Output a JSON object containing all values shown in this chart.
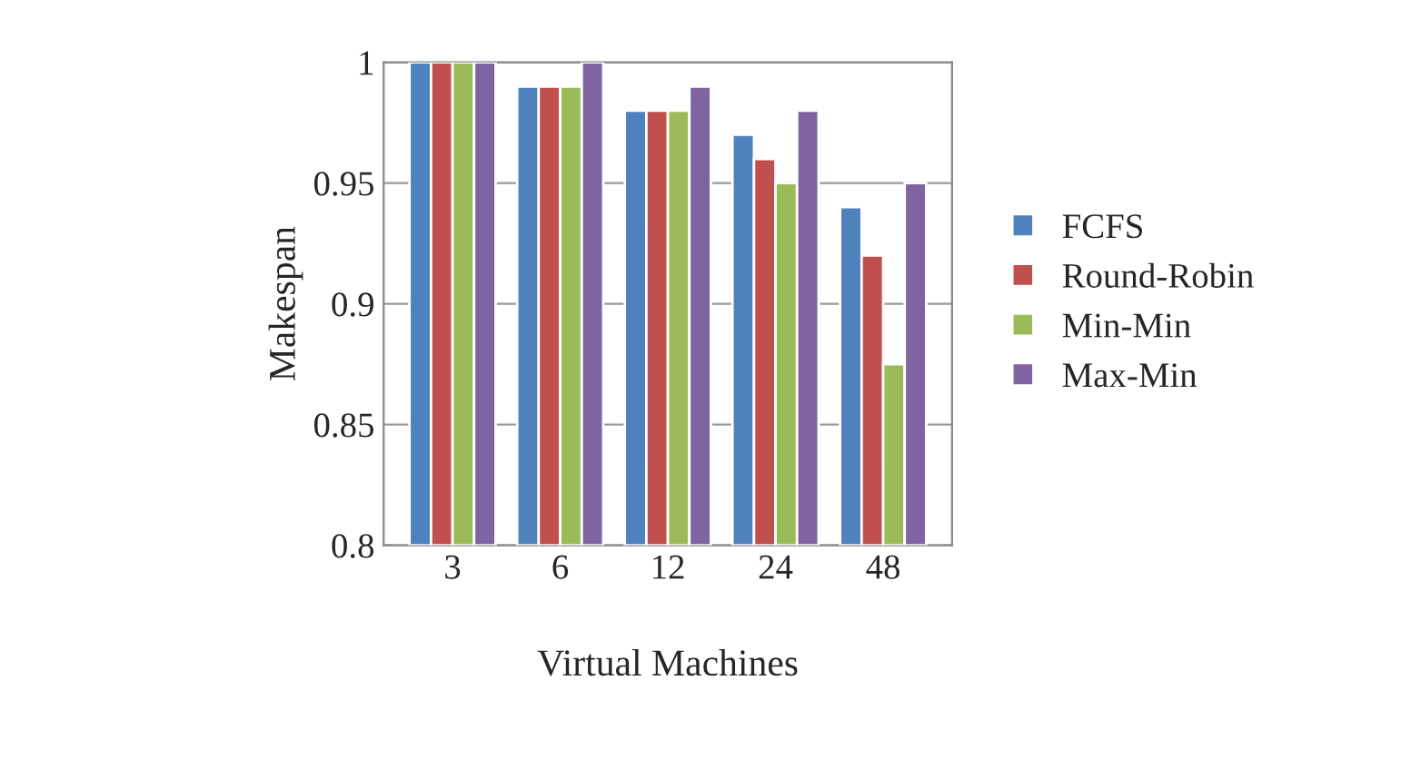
{
  "chart_data": {
    "type": "bar",
    "xlabel": "Virtual Machines",
    "ylabel": "Makespan",
    "categories": [
      "3",
      "6",
      "12",
      "24",
      "48"
    ],
    "series": [
      {
        "name": "FCFS",
        "color": "#4f81bd",
        "values": [
          1.0,
          0.99,
          0.98,
          0.97,
          0.94
        ]
      },
      {
        "name": "Round-Robin",
        "color": "#c0504d",
        "values": [
          1.0,
          0.99,
          0.98,
          0.96,
          0.92
        ]
      },
      {
        "name": "Min-Min",
        "color": "#9bbb59",
        "values": [
          1.0,
          0.99,
          0.98,
          0.95,
          0.875
        ]
      },
      {
        "name": "Max-Min",
        "color": "#8064a2",
        "values": [
          1.0,
          1.0,
          0.99,
          0.98,
          0.95
        ]
      }
    ],
    "ylim": [
      0.8,
      1.0
    ],
    "yticks": [
      0.8,
      0.85,
      0.9,
      0.95,
      1
    ],
    "grid": "y",
    "legend": "right"
  }
}
